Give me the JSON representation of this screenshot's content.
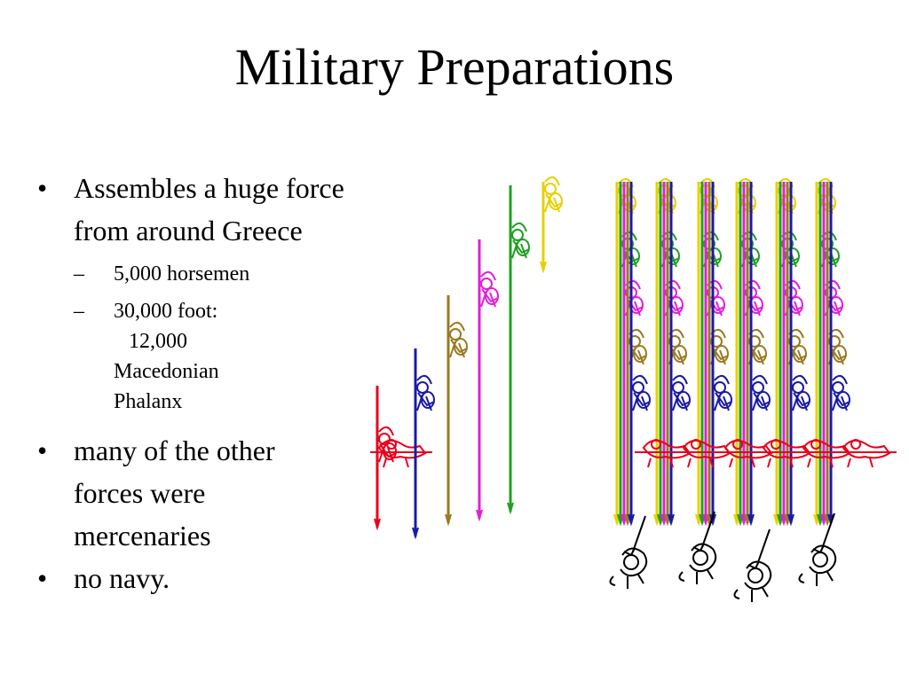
{
  "slide": {
    "title": "Military Preparations",
    "bullets": [
      {
        "text": "Assembles a huge force from around Greece",
        "sub": [
          {
            "lines": [
              "5,000 horsemen"
            ]
          },
          {
            "lines": [
              "30,000 foot:",
              "12,000",
              "Macedonian",
              "Phalanx"
            ]
          }
        ]
      },
      {
        "text": "many of the other forces were mercenaries"
      },
      {
        "text": "no navy."
      }
    ]
  },
  "illustration": {
    "colors": {
      "red": "#e8001c",
      "blue": "#1a1aa8",
      "olive": "#9a7a20",
      "magenta": "#e020d8",
      "green": "#20a020",
      "yellow": "#e8d000",
      "black": "#000000"
    }
  }
}
